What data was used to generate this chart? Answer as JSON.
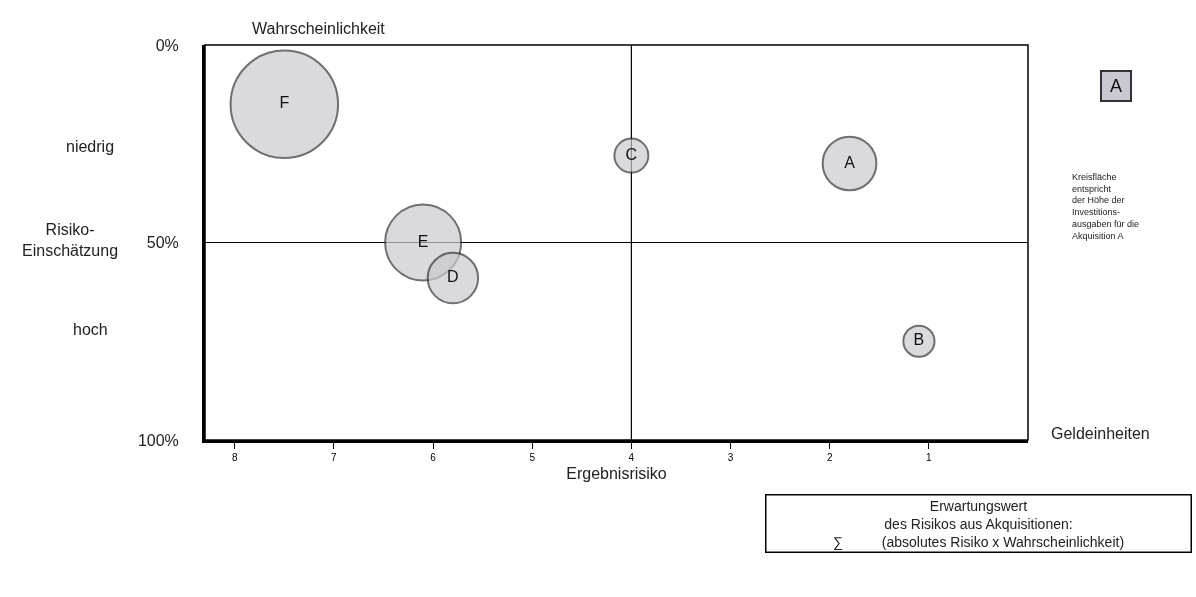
{
  "chart_data": {
    "type": "bubble",
    "xlabel": "Ergebnisrisiko",
    "ylabel": "Wahrscheinlichkeit",
    "xlim": [
      8.3,
      0
    ],
    "xticks": [
      8,
      7,
      6,
      5,
      4,
      3,
      2,
      1
    ],
    "ylim": [
      100,
      0
    ],
    "yticks": [
      {
        "value": 0,
        "label": "0%"
      },
      {
        "value": 50,
        "label": "50%"
      },
      {
        "value": 100,
        "label": "100%"
      }
    ],
    "grid": false,
    "legend": false,
    "ref_lines": [
      {
        "axis": "x",
        "value": 4
      },
      {
        "axis": "y",
        "value": 50
      }
    ],
    "series": [
      {
        "name": "F",
        "color": "#c9c9d1",
        "x": [
          7.5
        ],
        "values": [
          15
        ],
        "sizes": [
          1
        ]
      },
      {
        "name": "C",
        "color": "#c9c9d1",
        "x": [
          4.0
        ],
        "values": [
          28
        ],
        "sizes": [
          0.1
        ]
      },
      {
        "name": "A",
        "color": "#c9c9d1",
        "x": [
          1.8
        ],
        "values": [
          30
        ],
        "sizes": [
          0.25
        ]
      },
      {
        "name": "E",
        "color": "#c9c9d1",
        "x": [
          6.1
        ],
        "values": [
          50
        ],
        "sizes": [
          0.5
        ]
      },
      {
        "name": "D",
        "color": "#c9c9d1",
        "x": [
          5.8
        ],
        "values": [
          59
        ],
        "sizes": [
          0.22
        ]
      },
      {
        "name": "B",
        "color": "#c9c9d1",
        "x": [
          1.1
        ],
        "values": [
          75
        ],
        "sizes": [
          0.084
        ]
      }
    ],
    "annotations": [
      "Geldeinheiten",
      "niedrig",
      "Risiko-\nEinschätzung",
      "hoch",
      "A",
      "Kreisfläche\nentspricht\nder Höhe der\nInvestitions-\nausgaben für die\nAkquisition A",
      "Erwartungswert\ndes Risikos aus Akquisitionen:\n∑          (absolutes Risiko x Wahrscheinlichkeit)"
    ]
  }
}
